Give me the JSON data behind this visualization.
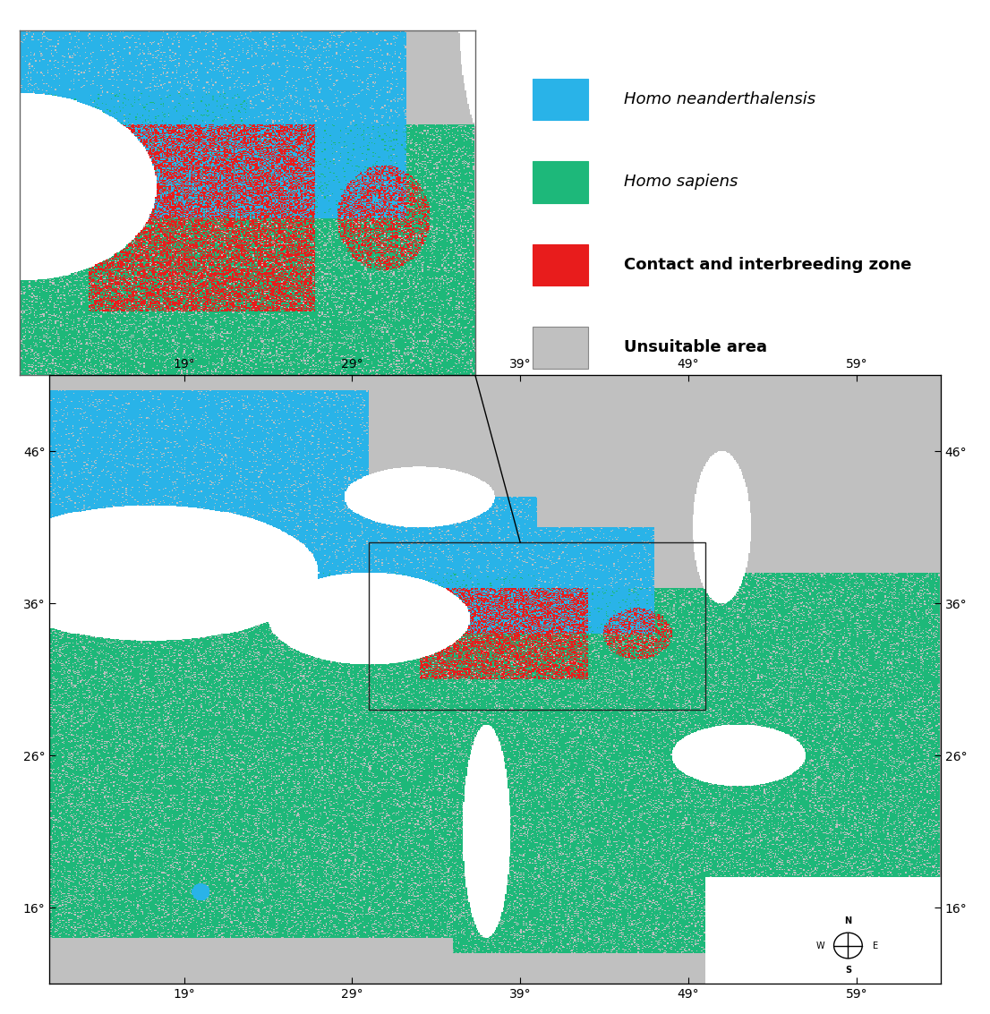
{
  "title": "",
  "background_color": "#ffffff",
  "map_bg_color": "#c8c8c8",
  "neanderthal_color": "#29b3e8",
  "sapiens_color": "#1db87a",
  "contact_color": "#e81c1c",
  "unsuitable_color": "#c0c0c0",
  "water_color": "#ffffff",
  "legend_items": [
    {
      "color": "#29b3e8",
      "label": "Homo neanderthalensis",
      "italic": true
    },
    {
      "color": "#1db87a",
      "label": "Homo sapiens",
      "italic": true
    },
    {
      "color": "#e81c1c",
      "label": "Contact and interbreeding zone",
      "italic": false
    },
    {
      "color": "#c0c0c0",
      "label": "Unsuitable area",
      "italic": false
    }
  ],
  "main_map": {
    "lon_min": 11,
    "lon_max": 64,
    "lat_min": 11,
    "lat_max": 51,
    "xticks": [
      19,
      29,
      39,
      49,
      59
    ],
    "yticks": [
      16,
      26,
      36,
      46
    ]
  },
  "inset_map": {
    "lon_min": 30,
    "lon_max": 50,
    "lat_min": 29,
    "lat_max": 40
  },
  "figure_size": [
    11.06,
    11.33
  ],
  "dpi": 100
}
